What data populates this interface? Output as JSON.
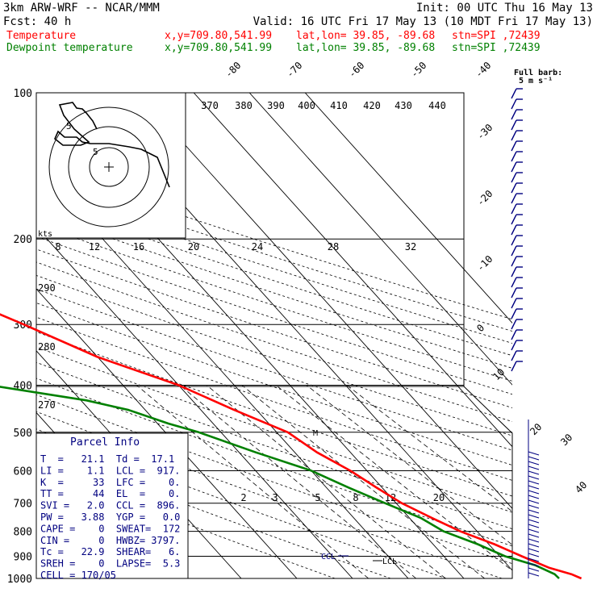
{
  "header": {
    "model": "3km ARW-WRF -- NCAR/MMM",
    "init": "Init: 00 UTC Thu 16 May 13",
    "fcst": "Fcst:   40 h",
    "valid": "Valid: 16 UTC Fri 17 May 13 (10 MDT Fri 17 May 13)",
    "line_temperature": "Temperature",
    "line_dewpoint": "Dewpoint temperature",
    "xy": "x,y=709.80,541.99",
    "latlon": "lat,lon= 39.85, -89.68",
    "stn": "stn=SPI ,72439"
  },
  "colors": {
    "temperature": "#ff0000",
    "dewpoint": "#008000",
    "barb": "#000080"
  },
  "barb_legend": {
    "line1": "Full barb:",
    "line2": "5 m s⁻¹"
  },
  "hodograph": {
    "units": "kts",
    "ring_labels": [
      "5",
      "5"
    ]
  },
  "parcel_info": {
    "title": "Parcel Info",
    "rows": [
      "T  =   21.1  Td =  17.1",
      "LI =    1.1  LCL =  917.",
      "K  =     33  LFC =    0.",
      "TT =     44  EL  =    0.",
      "SVI =   2.0  CCL =  896.",
      "PW =   3.88  YGP =   0.0",
      "CAPE =    0  SWEAT=  172",
      "CIN =     0  HWBZ= 3797.",
      "Tc =   22.9  SHEAR=   6.",
      "SREH =    0  LAPSE=  5.3",
      "CELL = 170/05"
    ]
  },
  "annotations": {
    "ccl": "CCL",
    "lcl": "LCL",
    "m": "M"
  },
  "chart_data": {
    "type": "line",
    "title": "",
    "xlabel": "",
    "ylabel": "",
    "y_scale": "log-pressure",
    "pressure_ticks": [
      100,
      200,
      300,
      400,
      500,
      600,
      700,
      800,
      900,
      1000
    ],
    "isotherm_labels": [
      -80,
      -70,
      -60,
      -50,
      -40,
      -30,
      -20,
      -10,
      0,
      10,
      20,
      30,
      40
    ],
    "theta_e_labels": [
      370,
      380,
      390,
      400,
      410,
      420,
      430,
      440
    ],
    "mixing_ratio_top_labels": [
      8,
      12,
      16,
      20,
      24,
      28,
      32
    ],
    "mixing_ratio_low_labels": [
      2,
      3,
      5,
      8,
      12,
      20
    ],
    "dry_adiabat_labels": [
      290,
      280,
      270
    ],
    "series": [
      {
        "name": "Temperature",
        "color": "#ff0000",
        "points": [
          [
            100,
            -52
          ],
          [
            115,
            -53
          ],
          [
            140,
            -56
          ],
          [
            170,
            -60
          ],
          [
            180,
            -62
          ],
          [
            200,
            -59
          ],
          [
            225,
            -53
          ],
          [
            250,
            -48
          ],
          [
            300,
            -38
          ],
          [
            350,
            -30
          ],
          [
            400,
            -20
          ],
          [
            450,
            -14
          ],
          [
            500,
            -8
          ],
          [
            550,
            -6
          ],
          [
            600,
            -3
          ],
          [
            650,
            -1
          ],
          [
            700,
            1
          ],
          [
            750,
            4
          ],
          [
            800,
            7
          ],
          [
            850,
            11
          ],
          [
            900,
            14
          ],
          [
            950,
            17
          ],
          [
            980,
            20
          ],
          [
            1000,
            21.1
          ]
        ]
      },
      {
        "name": "Dewpoint temperature",
        "color": "#008000",
        "points": [
          [
            100,
            -72
          ],
          [
            125,
            -74
          ],
          [
            150,
            -76
          ],
          [
            180,
            -77
          ],
          [
            200,
            -76
          ],
          [
            250,
            -75
          ],
          [
            300,
            -75
          ],
          [
            330,
            -72
          ],
          [
            360,
            -67
          ],
          [
            390,
            -62
          ],
          [
            400,
            -54
          ],
          [
            430,
            -39
          ],
          [
            450,
            -33
          ],
          [
            480,
            -28
          ],
          [
            500,
            -24
          ],
          [
            550,
            -17
          ],
          [
            600,
            -10
          ],
          [
            650,
            -6
          ],
          [
            700,
            -2
          ],
          [
            750,
            2
          ],
          [
            800,
            4
          ],
          [
            850,
            8
          ],
          [
            900,
            11
          ],
          [
            940,
            15
          ],
          [
            980,
            17
          ],
          [
            1000,
            17.1
          ]
        ]
      }
    ]
  }
}
